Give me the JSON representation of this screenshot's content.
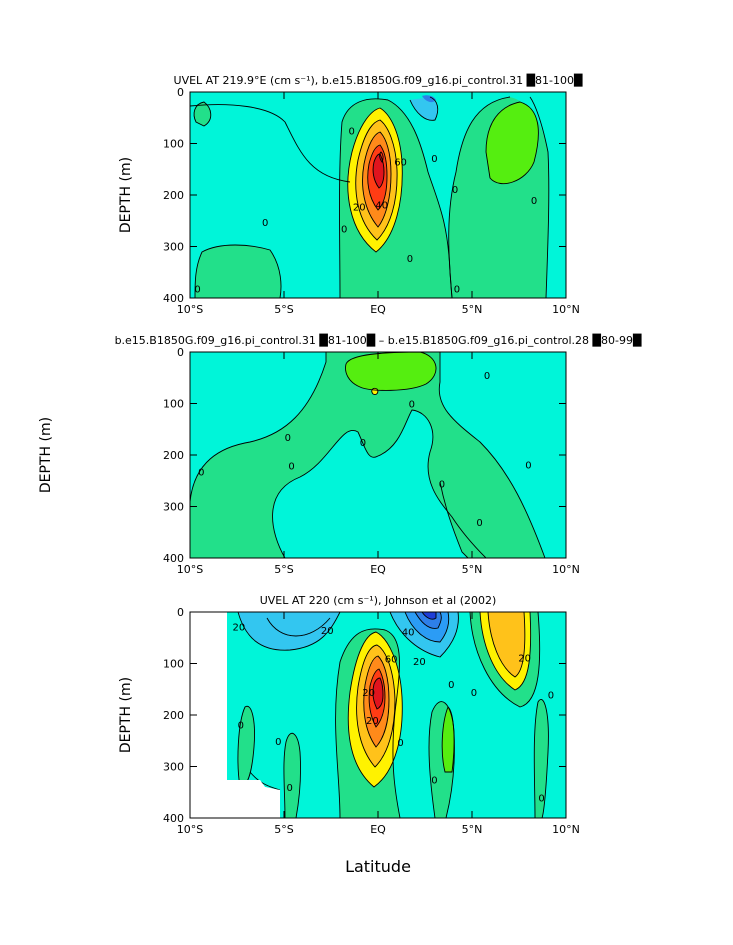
{
  "figure": {
    "xlabel_shared": "Latitude",
    "ylabel_middle": "DEPTH (m)"
  },
  "chart_data": [
    {
      "type": "heatmap",
      "title": "UVEL AT 219.9°E (cm s⁻¹), b.e15.B1850G.f09_g16.pi_control.31 █81-100█",
      "xlabel": "",
      "ylabel": "DEPTH (m)",
      "x_ticks": [
        "10°S",
        "5°S",
        "EQ",
        "5°N",
        "10°N"
      ],
      "x_tick_values": [
        -10,
        -5,
        0,
        5,
        10
      ],
      "y_ticks": [
        "0",
        "100",
        "200",
        "300",
        "400"
      ],
      "y_tick_values": [
        0,
        100,
        200,
        300,
        400
      ],
      "xlim": [
        -10,
        10
      ],
      "ylim": [
        0,
        400
      ],
      "contour_labels": [
        {
          "text": "0",
          "lat": -9.6,
          "depth": 382
        },
        {
          "text": "0",
          "lat": -6.0,
          "depth": 252
        },
        {
          "text": "0",
          "lat": -1.8,
          "depth": 265
        },
        {
          "text": "0",
          "lat": -1.4,
          "depth": 75
        },
        {
          "text": "60",
          "lat": 1.2,
          "depth": 135
        },
        {
          "text": "40",
          "lat": 0.2,
          "depth": 218
        },
        {
          "text": "20",
          "lat": -1.0,
          "depth": 222
        },
        {
          "text": "0",
          "lat": 3.0,
          "depth": 128
        },
        {
          "text": "0",
          "lat": 1.7,
          "depth": 322
        },
        {
          "text": "0",
          "lat": 4.1,
          "depth": 188
        },
        {
          "text": "0",
          "lat": 4.2,
          "depth": 382
        },
        {
          "text": "0",
          "lat": 8.3,
          "depth": 210
        }
      ]
    },
    {
      "type": "heatmap",
      "title": "b.e15.B1850G.f09_g16.pi_control.31 █81-100█ – b.e15.B1850G.f09_g16.pi_control.28 █80-99█",
      "xlabel": "",
      "ylabel": "",
      "x_ticks": [
        "10°S",
        "5°S",
        "EQ",
        "5°N",
        "10°N"
      ],
      "x_tick_values": [
        -10,
        -5,
        0,
        5,
        10
      ],
      "y_ticks": [
        "0",
        "100",
        "200",
        "300",
        "400"
      ],
      "y_tick_values": [
        0,
        100,
        200,
        300,
        400
      ],
      "xlim": [
        -10,
        10
      ],
      "ylim": [
        0,
        400
      ],
      "contour_labels": [
        {
          "text": "0",
          "lat": -9.4,
          "depth": 232
        },
        {
          "text": "0",
          "lat": -4.8,
          "depth": 165
        },
        {
          "text": "0",
          "lat": -4.6,
          "depth": 220
        },
        {
          "text": "0",
          "lat": -0.8,
          "depth": 175
        },
        {
          "text": "0",
          "lat": 1.8,
          "depth": 100
        },
        {
          "text": "0",
          "lat": 3.4,
          "depth": 255
        },
        {
          "text": "0",
          "lat": 5.8,
          "depth": 45
        },
        {
          "text": "0",
          "lat": 5.4,
          "depth": 330
        },
        {
          "text": "0",
          "lat": 8.0,
          "depth": 218
        }
      ]
    },
    {
      "type": "heatmap",
      "title": "UVEL AT 220 (cm s⁻¹), Johnson et al (2002)",
      "xlabel": "Latitude",
      "ylabel": "DEPTH (m)",
      "x_ticks": [
        "10°S",
        "5°S",
        "EQ",
        "5°N",
        "10°N"
      ],
      "x_tick_values": [
        -10,
        -5,
        0,
        5,
        10
      ],
      "y_ticks": [
        "0",
        "100",
        "200",
        "300",
        "400"
      ],
      "y_tick_values": [
        0,
        100,
        200,
        300,
        400
      ],
      "xlim": [
        -10,
        10
      ],
      "ylim": [
        0,
        400
      ],
      "contour_labels": [
        {
          "text": "20",
          "lat": -7.4,
          "depth": 28
        },
        {
          "text": "20",
          "lat": -2.7,
          "depth": 35
        },
        {
          "text": "40",
          "lat": 1.6,
          "depth": 38
        },
        {
          "text": "60",
          "lat": 0.7,
          "depth": 90
        },
        {
          "text": "20",
          "lat": -0.5,
          "depth": 155
        },
        {
          "text": "20",
          "lat": -0.3,
          "depth": 210
        },
        {
          "text": "20",
          "lat": 2.2,
          "depth": 95
        },
        {
          "text": "20",
          "lat": 7.8,
          "depth": 88
        },
        {
          "text": "0",
          "lat": -7.3,
          "depth": 218
        },
        {
          "text": "0",
          "lat": -4.7,
          "depth": 340
        },
        {
          "text": "0",
          "lat": -5.3,
          "depth": 250
        },
        {
          "text": "0",
          "lat": 1.2,
          "depth": 252
        },
        {
          "text": "0",
          "lat": 3.9,
          "depth": 140
        },
        {
          "text": "0",
          "lat": 5.1,
          "depth": 155
        },
        {
          "text": "0",
          "lat": 3.0,
          "depth": 325
        },
        {
          "text": "0",
          "lat": 9.2,
          "depth": 160
        },
        {
          "text": "0",
          "lat": 8.7,
          "depth": 360
        }
      ]
    }
  ]
}
